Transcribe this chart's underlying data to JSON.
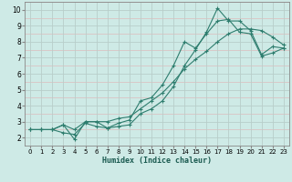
{
  "xlabel": "Humidex (Indice chaleur)",
  "bg_color": "#ceeae6",
  "grid_color_major": "#b8ceca",
  "grid_color_minor": "#ddbcbc",
  "line_color": "#2e7d6e",
  "xlim": [
    -0.5,
    23.5
  ],
  "ylim": [
    1.5,
    10.5
  ],
  "xticks": [
    0,
    1,
    2,
    3,
    4,
    5,
    6,
    7,
    8,
    9,
    10,
    11,
    12,
    13,
    14,
    15,
    16,
    17,
    18,
    19,
    20,
    21,
    22,
    23
  ],
  "yticks": [
    2,
    3,
    4,
    5,
    6,
    7,
    8,
    9,
    10
  ],
  "line1_x": [
    0,
    1,
    2,
    3,
    4,
    5,
    6,
    7,
    8,
    9,
    10,
    11,
    12,
    13,
    14,
    15,
    16,
    17,
    18,
    19,
    20,
    21,
    22,
    23
  ],
  "line1_y": [
    2.5,
    2.5,
    2.5,
    2.3,
    2.2,
    2.9,
    2.7,
    2.6,
    2.7,
    2.8,
    3.5,
    3.8,
    4.3,
    5.2,
    6.5,
    7.5,
    8.6,
    10.1,
    9.3,
    9.3,
    8.7,
    7.2,
    7.7,
    7.6
  ],
  "line2_x": [
    0,
    1,
    2,
    3,
    4,
    5,
    6,
    7,
    8,
    9,
    10,
    11,
    12,
    13,
    14,
    15,
    16,
    17,
    18,
    19,
    20,
    21,
    22,
    23
  ],
  "line2_y": [
    2.5,
    2.5,
    2.5,
    2.8,
    1.9,
    3.0,
    3.0,
    2.6,
    2.9,
    3.1,
    4.3,
    4.5,
    5.3,
    6.5,
    8.0,
    7.6,
    8.5,
    9.3,
    9.4,
    8.6,
    8.5,
    7.1,
    7.3,
    7.6
  ],
  "line3_x": [
    0,
    1,
    2,
    3,
    4,
    5,
    6,
    7,
    8,
    9,
    10,
    11,
    12,
    13,
    14,
    15,
    16,
    17,
    18,
    19,
    20,
    21,
    22,
    23
  ],
  "line3_y": [
    2.5,
    2.5,
    2.5,
    2.8,
    2.5,
    3.0,
    3.0,
    3.0,
    3.2,
    3.3,
    3.8,
    4.3,
    4.8,
    5.5,
    6.3,
    6.9,
    7.4,
    8.0,
    8.5,
    8.8,
    8.8,
    8.7,
    8.3,
    7.8
  ]
}
